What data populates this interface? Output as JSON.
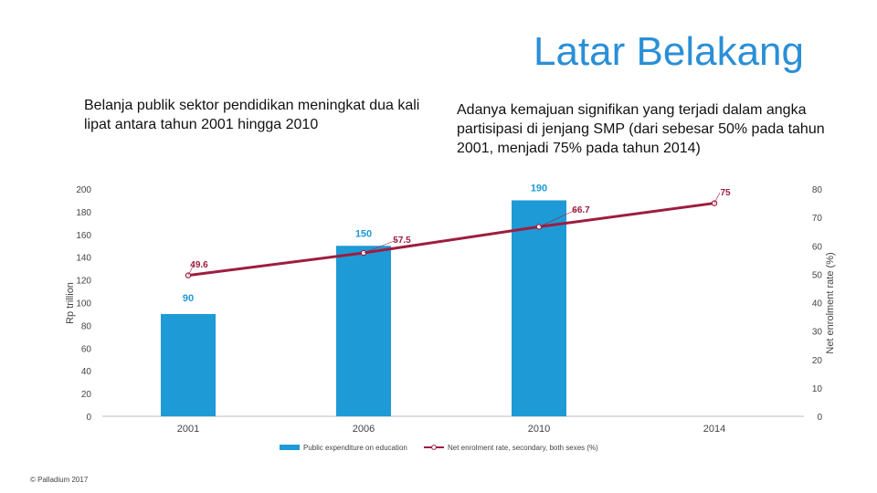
{
  "slide": {
    "title": "Latar Belakang",
    "intro_left": "Belanja publik sektor pendidikan meningkat dua kali lipat antara tahun 2001 hingga 2010",
    "intro_right": "Adanya kemajuan signifikan yang terjadi dalam angka partisipasi di jenjang SMP (dari sebesar 50% pada tahun 2001, menjadi 75% pada tahun 2014)",
    "copyright": "© Palladium 2017"
  },
  "chart_data": {
    "type": "bar",
    "categories": [
      "2001",
      "2006",
      "2010",
      "2014"
    ],
    "series": [
      {
        "name": "Public expenditure on education",
        "type": "bar",
        "axis": "left",
        "values": [
          90,
          150,
          190,
          null
        ],
        "color": "#1e9ad6"
      },
      {
        "name": "Net enrolment rate, secondary, both sexes (%)",
        "type": "line",
        "axis": "right",
        "values": [
          49.6,
          57.5,
          66.7,
          75
        ],
        "color": "#9e1d3f"
      }
    ],
    "bar_labels": [
      "90",
      "150",
      "190"
    ],
    "line_labels": [
      "49.6",
      "57.5",
      "66.7",
      "75"
    ],
    "ylabel": "Rp trillion",
    "ylabel_right": "Net enrolment rate (%)",
    "ylim": [
      0,
      200
    ],
    "ylim_right": [
      0,
      80
    ],
    "yticks": [
      "0",
      "20",
      "40",
      "60",
      "80",
      "100",
      "120",
      "140",
      "160",
      "180",
      "200"
    ],
    "yticks_right": [
      "0",
      "10",
      "20",
      "30",
      "40",
      "50",
      "60",
      "70",
      "80"
    ],
    "grid": false,
    "legend_position": "bottom"
  }
}
